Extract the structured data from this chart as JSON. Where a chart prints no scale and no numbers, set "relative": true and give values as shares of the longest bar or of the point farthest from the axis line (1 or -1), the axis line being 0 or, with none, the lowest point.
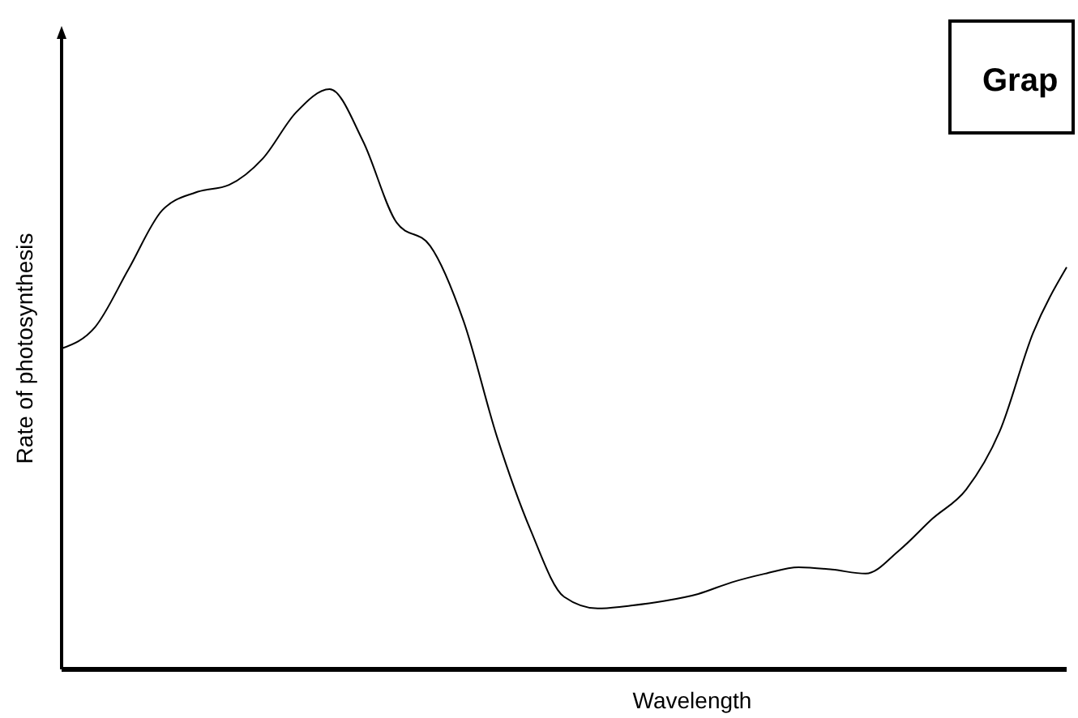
{
  "chart_data": {
    "type": "line",
    "title": "Grap",
    "xlabel": "Wavelength",
    "ylabel": "Rate of photosynthesis",
    "relative": true,
    "categories": [
      null,
      null,
      null,
      null,
      null,
      null,
      null,
      null,
      null,
      null,
      null,
      null,
      null,
      null,
      null,
      null,
      null,
      null,
      null,
      null,
      null,
      null,
      null,
      null,
      null,
      null,
      null,
      null,
      null,
      null,
      null
    ],
    "series": [
      {
        "color": "#000000",
        "values": [
          0.553,
          0.59,
          0.69,
          0.791,
          0.822,
          0.835,
          0.88,
          0.96,
          1,
          0.91,
          0.77,
          0.73,
          0.6,
          0.4,
          0.24,
          0.125,
          0.105,
          0.11,
          0.118,
          0.13,
          0.15,
          0.165,
          0.176,
          0.172,
          0.165,
          0.205,
          0.26,
          0.31,
          0.41,
          0.58,
          0.693
        ]
      }
    ],
    "marker": "none",
    "line_style": "solid"
  }
}
